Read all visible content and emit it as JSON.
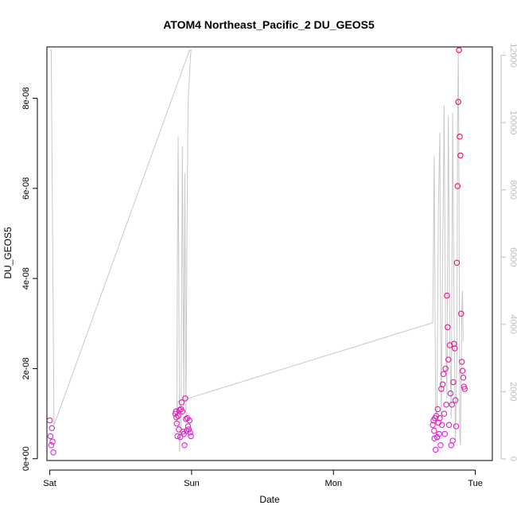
{
  "chart_data": {
    "type": "scatter",
    "title": "ATOM4 Northeast_Pacific_2 DU_GEOS5",
    "xlabel": "Date",
    "ylabel": "DU_GEOS5",
    "x_unit": "days",
    "xlim": [
      -0.02,
      3.12
    ],
    "x_ticks": [
      {
        "value": 0,
        "label": "Sat"
      },
      {
        "value": 1,
        "label": "Sun"
      },
      {
        "value": 2,
        "label": "Mon"
      },
      {
        "value": 3,
        "label": "Tue"
      }
    ],
    "ylim": [
      -4e-10,
      9.14e-08
    ],
    "y_ticks": [
      {
        "value": 0,
        "label": "0e+00"
      },
      {
        "value": 2e-08,
        "label": "2e-08"
      },
      {
        "value": 4e-08,
        "label": "4e-08"
      },
      {
        "value": 6e-08,
        "label": "6e-08"
      },
      {
        "value": 8e-08,
        "label": "8e-08"
      }
    ],
    "y2lim": [
      -50,
      12250
    ],
    "y2_ticks": [
      {
        "value": 0,
        "label": "0"
      },
      {
        "value": 2000,
        "label": "2000"
      },
      {
        "value": 4000,
        "label": "4000"
      },
      {
        "value": 6000,
        "label": "6000"
      },
      {
        "value": 8000,
        "label": "8000"
      },
      {
        "value": 10000,
        "label": "10000"
      },
      {
        "value": 12000,
        "label": "12000"
      }
    ],
    "point_color_low": "#cc33ff",
    "point_color_high": "#ff0033",
    "line_color": "#c8c8c8",
    "altitude_line": [
      [
        0.0,
        12150
      ],
      [
        0.01,
        12150
      ],
      [
        0.03,
        1000
      ],
      [
        0.985,
        12150
      ],
      [
        1.0,
        12150
      ],
      [
        0.995,
        12150
      ],
      [
        0.98,
        11000
      ],
      [
        0.975,
        10600
      ],
      [
        0.968,
        7000
      ],
      [
        0.96,
        1200
      ],
      [
        0.952,
        8500
      ],
      [
        0.945,
        1500
      ],
      [
        0.935,
        9300
      ],
      [
        0.925,
        1000
      ],
      [
        0.915,
        200
      ],
      [
        0.905,
        9600
      ],
      [
        0.9,
        6000
      ],
      [
        0.895,
        1000
      ],
      [
        0.9,
        1700
      ],
      [
        2.7,
        4050
      ],
      [
        2.705,
        6500
      ],
      [
        2.71,
        9000
      ],
      [
        2.715,
        5000
      ],
      [
        2.72,
        1500
      ],
      [
        2.73,
        1200
      ],
      [
        2.74,
        7500
      ],
      [
        2.75,
        9700
      ],
      [
        2.755,
        4000
      ],
      [
        2.76,
        1200
      ],
      [
        2.77,
        6000
      ],
      [
        2.78,
        10500
      ],
      [
        2.79,
        4000
      ],
      [
        2.8,
        1800
      ],
      [
        2.81,
        10200
      ],
      [
        2.82,
        3500
      ],
      [
        2.83,
        1200
      ],
      [
        2.84,
        10300
      ],
      [
        2.85,
        4500
      ],
      [
        2.86,
        500
      ],
      [
        2.87,
        3000
      ],
      [
        2.875,
        10000
      ],
      [
        2.88,
        12150
      ],
      [
        2.885,
        8000
      ],
      [
        2.89,
        700
      ],
      [
        2.895,
        400
      ],
      [
        2.9,
        2500
      ],
      [
        2.905,
        4500
      ],
      [
        2.91,
        5000
      ],
      [
        2.915,
        3500
      ]
    ],
    "points": [
      {
        "x": 0.0,
        "y": 8.5e-09
      },
      {
        "x": 0.005,
        "y": 5e-09
      },
      {
        "x": 0.01,
        "y": 3e-09
      },
      {
        "x": 0.015,
        "y": 6.8e-09
      },
      {
        "x": 0.02,
        "y": 3.8e-09
      },
      {
        "x": 0.025,
        "y": 1.4e-09
      },
      {
        "x": 0.885,
        "y": 1e-08
      },
      {
        "x": 0.89,
        "y": 1.05e-08
      },
      {
        "x": 0.892,
        "y": 9.2e-09
      },
      {
        "x": 0.895,
        "y": 7.8e-09
      },
      {
        "x": 0.9,
        "y": 5e-09
      },
      {
        "x": 0.905,
        "y": 9.5e-09
      },
      {
        "x": 0.91,
        "y": 6.5e-09
      },
      {
        "x": 0.915,
        "y": 1.08e-08
      },
      {
        "x": 0.92,
        "y": 4.8e-09
      },
      {
        "x": 0.925,
        "y": 1.1e-08
      },
      {
        "x": 0.93,
        "y": 1.25e-08
      },
      {
        "x": 0.935,
        "y": 1.05e-08
      },
      {
        "x": 0.94,
        "y": 6e-09
      },
      {
        "x": 0.945,
        "y": 5.5e-09
      },
      {
        "x": 0.95,
        "y": 3e-09
      },
      {
        "x": 0.955,
        "y": 1.34e-08
      },
      {
        "x": 0.96,
        "y": 8.8e-09
      },
      {
        "x": 0.965,
        "y": 6.2e-09
      },
      {
        "x": 0.97,
        "y": 9e-09
      },
      {
        "x": 0.975,
        "y": 7.2e-09
      },
      {
        "x": 0.98,
        "y": 6.5e-09
      },
      {
        "x": 0.985,
        "y": 8.5e-09
      },
      {
        "x": 0.99,
        "y": 5.8e-09
      },
      {
        "x": 0.995,
        "y": 5e-09
      },
      {
        "x": 2.7,
        "y": 7.5e-09
      },
      {
        "x": 2.705,
        "y": 8.5e-09
      },
      {
        "x": 2.71,
        "y": 6.2e-09
      },
      {
        "x": 2.712,
        "y": 4.5e-09
      },
      {
        "x": 2.715,
        "y": 9e-09
      },
      {
        "x": 2.72,
        "y": 2e-09
      },
      {
        "x": 2.725,
        "y": 9.5e-09
      },
      {
        "x": 2.73,
        "y": 4.8e-09
      },
      {
        "x": 2.735,
        "y": 1.1e-08
      },
      {
        "x": 2.74,
        "y": 8e-09
      },
      {
        "x": 2.745,
        "y": 5.5e-09
      },
      {
        "x": 2.75,
        "y": 9e-09
      },
      {
        "x": 2.755,
        "y": 3e-09
      },
      {
        "x": 2.76,
        "y": 1.55e-08
      },
      {
        "x": 2.765,
        "y": 7.5e-09
      },
      {
        "x": 2.77,
        "y": 1.65e-08
      },
      {
        "x": 2.775,
        "y": 1.88e-08
      },
      {
        "x": 2.78,
        "y": 1e-08
      },
      {
        "x": 2.785,
        "y": 5.5e-09
      },
      {
        "x": 2.79,
        "y": 2e-08
      },
      {
        "x": 2.795,
        "y": 1.2e-08
      },
      {
        "x": 2.8,
        "y": 3.62e-08
      },
      {
        "x": 2.805,
        "y": 2.92e-08
      },
      {
        "x": 2.81,
        "y": 2.2e-08
      },
      {
        "x": 2.815,
        "y": 7.5e-09
      },
      {
        "x": 2.82,
        "y": 2.52e-08
      },
      {
        "x": 2.825,
        "y": 1.45e-08
      },
      {
        "x": 2.83,
        "y": 3e-09
      },
      {
        "x": 2.835,
        "y": 1.2e-08
      },
      {
        "x": 2.84,
        "y": 4e-09
      },
      {
        "x": 2.845,
        "y": 1.7e-08
      },
      {
        "x": 2.85,
        "y": 2.55e-08
      },
      {
        "x": 2.855,
        "y": 2.45e-08
      },
      {
        "x": 2.86,
        "y": 1.3e-08
      },
      {
        "x": 2.865,
        "y": 7.2e-09
      },
      {
        "x": 2.87,
        "y": 4.35e-08
      },
      {
        "x": 2.875,
        "y": 6.05e-08
      },
      {
        "x": 2.88,
        "y": 7.92e-08
      },
      {
        "x": 2.885,
        "y": 9.07e-08
      },
      {
        "x": 2.89,
        "y": 7.15e-08
      },
      {
        "x": 2.895,
        "y": 6.73e-08
      },
      {
        "x": 2.9,
        "y": 3.22e-08
      },
      {
        "x": 2.905,
        "y": 2.15e-08
      },
      {
        "x": 2.91,
        "y": 1.95e-08
      },
      {
        "x": 2.915,
        "y": 1.8e-08
      },
      {
        "x": 2.92,
        "y": 1.6e-08
      },
      {
        "x": 2.925,
        "y": 1.55e-08
      }
    ]
  }
}
